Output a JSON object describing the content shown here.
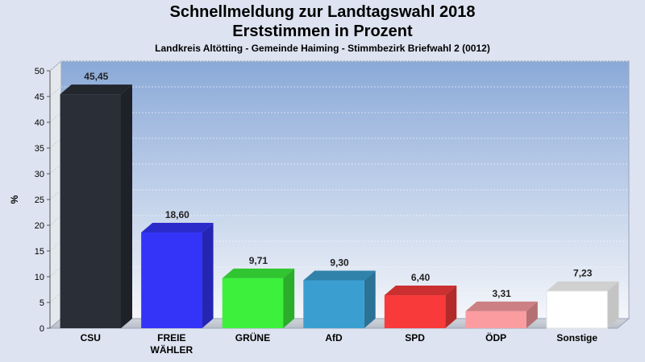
{
  "header": {
    "title": "Schnellmeldung zur Landtagswahl 2018",
    "subtitle_main": "Erststimmen in Prozent",
    "subtitle": "Landkreis Altötting - Gemeinde Haiming - Stimmbezirk Briefwahl 2 (0012)"
  },
  "chart_data": {
    "type": "bar",
    "title": "Schnellmeldung zur Landtagswahl 2018",
    "subtitle": "Erststimmen in Prozent",
    "ylabel": "%",
    "xlabel": "",
    "ylim": [
      0,
      50
    ],
    "yticks": [
      0,
      5,
      10,
      15,
      20,
      25,
      30,
      35,
      40,
      45,
      50
    ],
    "grid": true,
    "categories": [
      [
        "CSU"
      ],
      [
        "FREIE",
        "WÄHLER"
      ],
      [
        "GRÜNE"
      ],
      [
        "AfD"
      ],
      [
        "SPD"
      ],
      [
        "ÖDP"
      ],
      [
        "Sonstige"
      ]
    ],
    "values": [
      45.45,
      18.6,
      9.71,
      9.3,
      6.4,
      3.31,
      7.23
    ],
    "value_labels": [
      "45,45",
      "18,60",
      "9,71",
      "9,30",
      "6,40",
      "3,31",
      "7,23"
    ],
    "colors": [
      "#2a2e37",
      "#3434f8",
      "#3cf03c",
      "#3a9fd0",
      "#f83a3a",
      "#fa9ca0",
      "#ffffff"
    ]
  }
}
